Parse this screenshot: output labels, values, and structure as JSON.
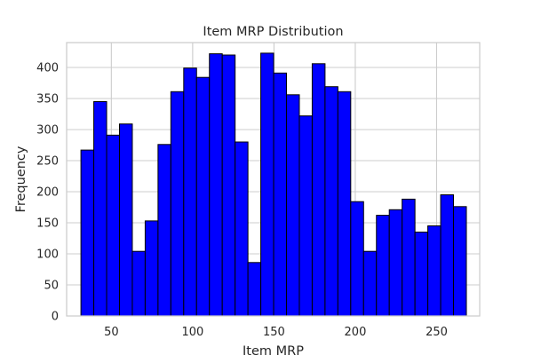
{
  "chart_data": {
    "type": "bar",
    "title": "Item MRP Distribution",
    "xlabel": "Item MRP",
    "ylabel": "Frequency",
    "xlim": [
      22.5,
      276.5
    ],
    "ylim": [
      0,
      440
    ],
    "grid": true,
    "bin_edges": [
      31.3,
      39.2,
      47.1,
      55.0,
      62.9,
      70.8,
      78.7,
      86.6,
      94.5,
      102.4,
      110.3,
      118.2,
      126.1,
      134.0,
      141.9,
      149.8,
      157.7,
      165.6,
      173.5,
      181.4,
      189.3,
      197.2,
      205.1,
      213.0,
      220.9,
      228.8,
      236.7,
      244.6,
      252.5,
      260.4,
      268.3
    ],
    "values": [
      267,
      345,
      291,
      309,
      104,
      153,
      276,
      361,
      399,
      384,
      422,
      420,
      280,
      86,
      423,
      391,
      356,
      322,
      406,
      369,
      361,
      184,
      104,
      162,
      171,
      188,
      135,
      145,
      195,
      176
    ],
    "xticks": [
      50,
      100,
      150,
      200,
      250
    ],
    "yticks": [
      0,
      50,
      100,
      150,
      200,
      250,
      300,
      350,
      400
    ],
    "bar_color": "#0000ff",
    "edge_color": "#000000",
    "grid_color": "#cccccc",
    "spine_color": "#cccccc"
  }
}
